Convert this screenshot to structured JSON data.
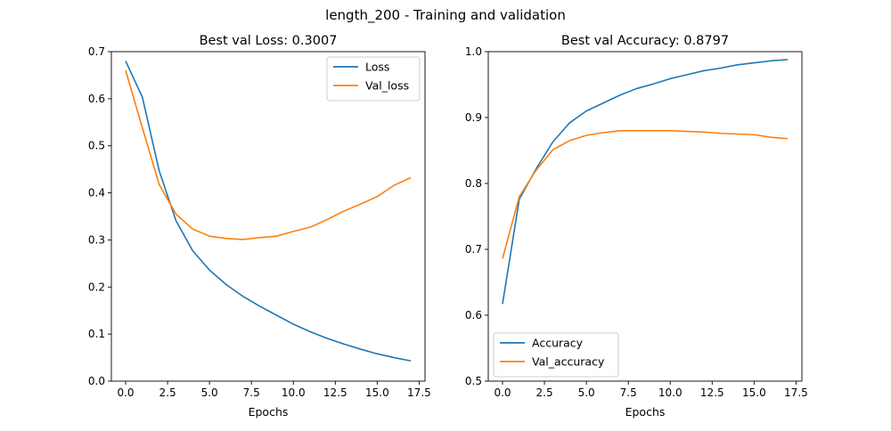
{
  "figure": {
    "suptitle": "length_200 - Training and validation"
  },
  "chart_data": [
    {
      "type": "line",
      "title": "Best val Loss: 0.3007",
      "xlabel": "Epochs",
      "ylabel": "",
      "xlim": [
        -0.85,
        17.85
      ],
      "ylim": [
        0.0,
        0.7
      ],
      "xticks": [
        0,
        2.5,
        5,
        7.5,
        10,
        12.5,
        15,
        17.5
      ],
      "xtick_labels": [
        "0.0",
        "2.5",
        "5.0",
        "7.5",
        "10.0",
        "12.5",
        "15.0",
        "17.5"
      ],
      "yticks": [
        0,
        0.1,
        0.2,
        0.3,
        0.4,
        0.5,
        0.6,
        0.7
      ],
      "ytick_labels": [
        "0.0",
        "0.1",
        "0.2",
        "0.3",
        "0.4",
        "0.5",
        "0.6",
        "0.7"
      ],
      "legend_position": "top-right",
      "grid": false,
      "x": [
        0,
        1,
        2,
        3,
        4,
        5,
        6,
        7,
        8,
        9,
        10,
        11,
        12,
        13,
        14,
        15,
        16,
        17
      ],
      "series": [
        {
          "name": "Loss",
          "color": "#1f77b4",
          "values": [
            0.68,
            0.603,
            0.447,
            0.341,
            0.277,
            0.236,
            0.205,
            0.18,
            0.159,
            0.14,
            0.121,
            0.105,
            0.091,
            0.079,
            0.068,
            0.058,
            0.05,
            0.043
          ]
        },
        {
          "name": "Val_loss",
          "color": "#ff7f0e",
          "values": [
            0.66,
            0.538,
            0.418,
            0.355,
            0.323,
            0.308,
            0.303,
            0.301,
            0.305,
            0.308,
            0.318,
            0.327,
            0.343,
            0.361,
            0.376,
            0.392,
            0.416,
            0.432
          ]
        }
      ]
    },
    {
      "type": "line",
      "title": "Best val Accuracy: 0.8797",
      "xlabel": "Epochs",
      "ylabel": "",
      "xlim": [
        -0.85,
        17.85
      ],
      "ylim": [
        0.5,
        1.0
      ],
      "xticks": [
        0,
        2.5,
        5,
        7.5,
        10,
        12.5,
        15,
        17.5
      ],
      "xtick_labels": [
        "0.0",
        "2.5",
        "5.0",
        "7.5",
        "10.0",
        "12.5",
        "15.0",
        "17.5"
      ],
      "yticks": [
        0.5,
        0.6,
        0.7,
        0.8,
        0.9,
        1.0
      ],
      "ytick_labels": [
        "0.5",
        "0.6",
        "0.7",
        "0.8",
        "0.9",
        "1.0"
      ],
      "legend_position": "bottom-left",
      "grid": false,
      "x": [
        0,
        1,
        2,
        3,
        4,
        5,
        6,
        7,
        8,
        9,
        10,
        11,
        12,
        13,
        14,
        15,
        16,
        17
      ],
      "series": [
        {
          "name": "Accuracy",
          "color": "#1f77b4",
          "values": [
            0.617,
            0.776,
            0.822,
            0.863,
            0.892,
            0.91,
            0.922,
            0.934,
            0.944,
            0.951,
            0.959,
            0.965,
            0.971,
            0.975,
            0.98,
            0.983,
            0.986,
            0.988
          ]
        },
        {
          "name": "Val_accuracy",
          "color": "#ff7f0e",
          "values": [
            0.686,
            0.78,
            0.82,
            0.851,
            0.865,
            0.873,
            0.877,
            0.88,
            0.88,
            0.88,
            0.88,
            0.879,
            0.878,
            0.876,
            0.875,
            0.874,
            0.87,
            0.868
          ]
        }
      ]
    }
  ]
}
